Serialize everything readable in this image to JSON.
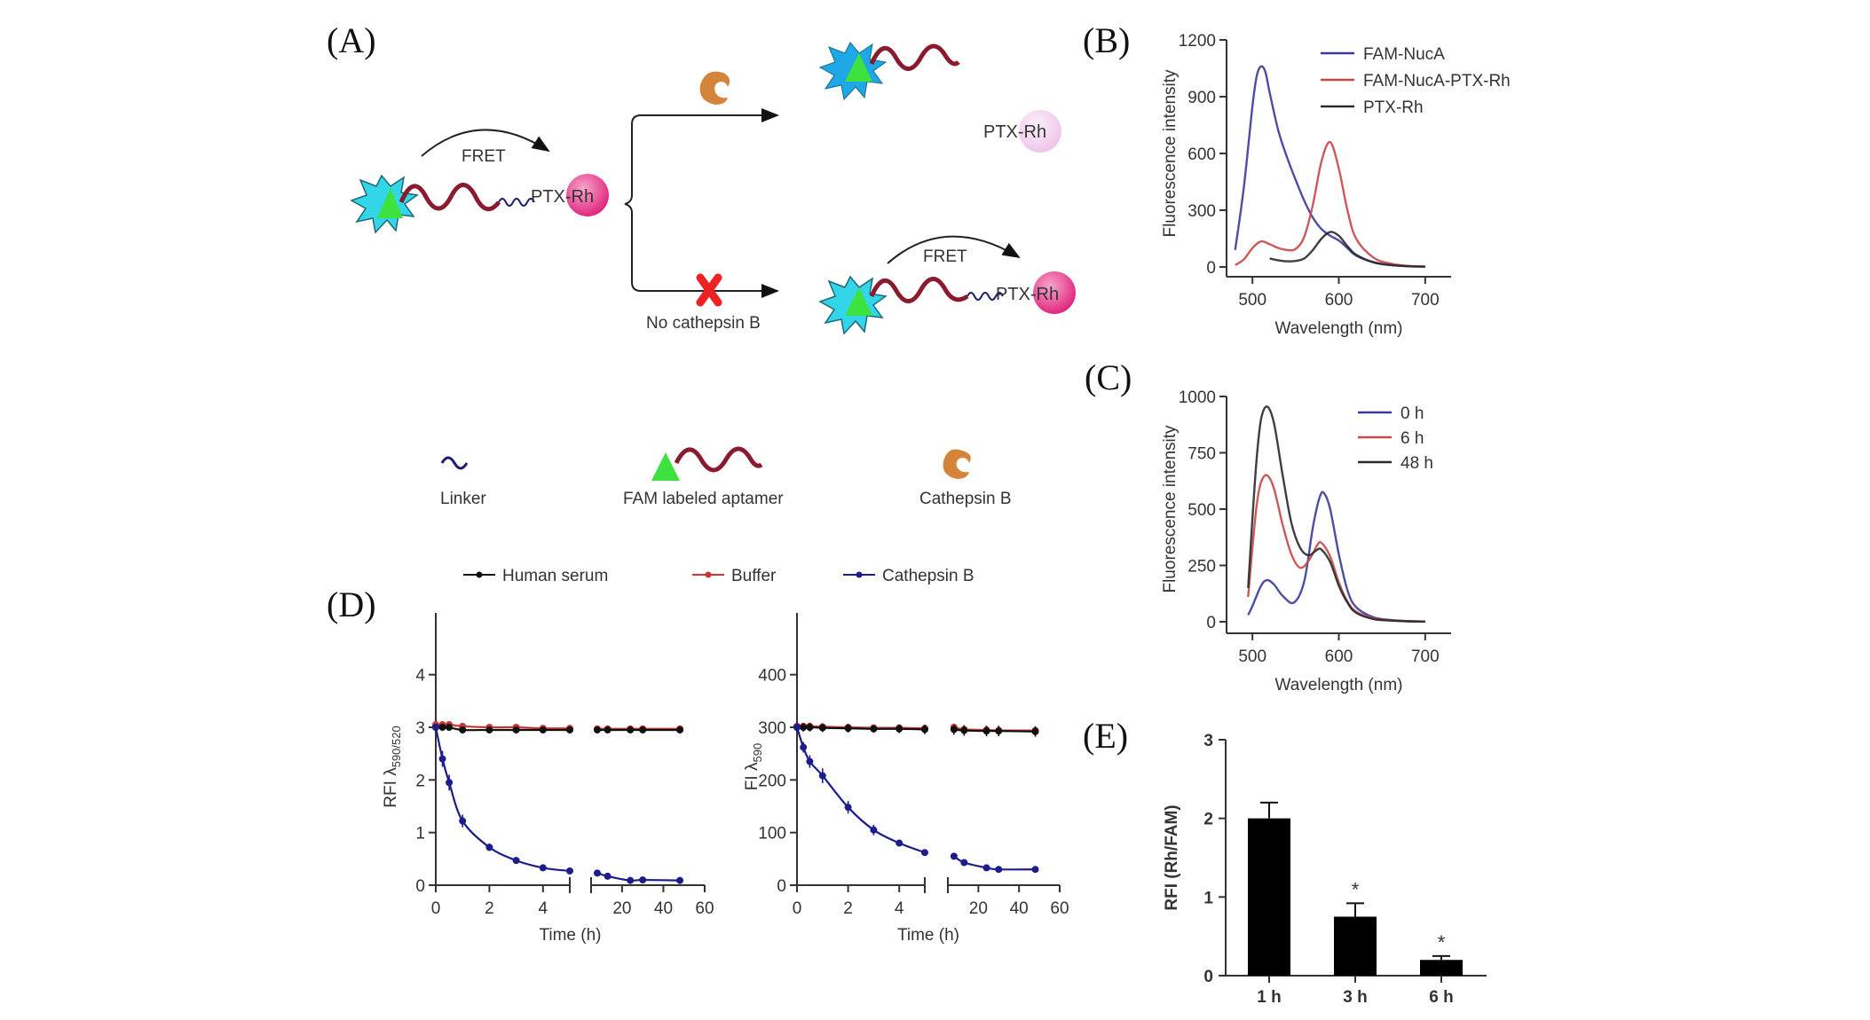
{
  "panels": {
    "A": {
      "letter": "(A)",
      "fret_label": "FRET",
      "ptx_rh_label": "PTX-Rh",
      "released_ptx_rh_label": "PTX-Rh",
      "no_cathepsin_label": "No cathepsin B",
      "legend": {
        "linker": "Linker",
        "aptamer": "FAM labeled aptamer",
        "cathepsin": "Cathepsin B"
      },
      "colors": {
        "star": "#33d6e8",
        "star_released": "#1ea8e6",
        "fam": "#3ee23e",
        "aptamer": "#8a1a2e",
        "linker": "#1c1c6e",
        "rh": "#e8348c",
        "rh_faded": "#f3d3ef",
        "cathepsin": "#d4843a",
        "cross": "#ee2222"
      }
    },
    "B": {
      "letter": "(B)"
    },
    "C": {
      "letter": "(C)"
    },
    "D": {
      "letter": "(D)"
    },
    "E": {
      "letter": "(E)"
    }
  },
  "chart_data": [
    {
      "id": "B",
      "type": "line",
      "xlabel": "Wavelength (nm)",
      "ylabel": "Fluorescence intensity",
      "xlim": [
        470,
        730
      ],
      "ylim": [
        0,
        1200
      ],
      "xticks": [
        500,
        600,
        700
      ],
      "yticks": [
        0,
        300,
        600,
        900,
        1200
      ],
      "legend_position": "top-right",
      "series": [
        {
          "name": "FAM-NucA",
          "color": "#3a3a9a",
          "x": [
            480,
            490,
            500,
            505,
            510,
            515,
            520,
            530,
            540,
            550,
            560,
            570,
            580,
            590,
            600,
            610,
            620,
            640,
            660,
            680,
            700
          ],
          "y": [
            90,
            420,
            850,
            1010,
            1060,
            1030,
            920,
            720,
            580,
            460,
            350,
            260,
            200,
            165,
            140,
            100,
            60,
            25,
            10,
            4,
            2
          ]
        },
        {
          "name": "FAM-NucA-PTX-Rh",
          "color": "#c84848",
          "x": [
            480,
            490,
            500,
            510,
            520,
            530,
            540,
            550,
            560,
            570,
            580,
            590,
            600,
            610,
            620,
            640,
            660,
            680,
            700
          ],
          "y": [
            10,
            40,
            100,
            135,
            120,
            100,
            90,
            95,
            160,
            330,
            560,
            660,
            520,
            300,
            150,
            50,
            18,
            6,
            2
          ]
        },
        {
          "name": "PTX-Rh",
          "color": "#2a2a2a",
          "x": [
            520,
            530,
            540,
            550,
            560,
            570,
            580,
            590,
            600,
            610,
            620,
            640,
            660,
            680,
            700
          ],
          "y": [
            45,
            35,
            30,
            32,
            45,
            90,
            150,
            185,
            165,
            110,
            65,
            25,
            10,
            4,
            2
          ]
        }
      ]
    },
    {
      "id": "C",
      "type": "line",
      "xlabel": "Wavelength (nm)",
      "ylabel": "Fluorescence intensity",
      "xlim": [
        470,
        730
      ],
      "ylim": [
        0,
        1000
      ],
      "xticks": [
        500,
        600,
        700
      ],
      "yticks": [
        0,
        250,
        500,
        750,
        1000
      ],
      "legend_position": "top-right",
      "series": [
        {
          "name": "0 h",
          "color": "#3a3a9a",
          "x": [
            495,
            500,
            510,
            517,
            525,
            535,
            548,
            560,
            570,
            578,
            583,
            590,
            600,
            610,
            620,
            640,
            660,
            680,
            700
          ],
          "y": [
            30,
            70,
            160,
            185,
            165,
            115,
            85,
            180,
            420,
            555,
            570,
            500,
            300,
            140,
            65,
            20,
            8,
            3,
            1
          ]
        },
        {
          "name": "6 h",
          "color": "#c84848",
          "x": [
            495,
            500,
            505,
            510,
            517,
            525,
            535,
            545,
            555,
            565,
            575,
            580,
            590,
            600,
            610,
            620,
            640,
            660,
            680,
            700
          ],
          "y": [
            110,
            330,
            520,
            620,
            650,
            590,
            430,
            300,
            240,
            270,
            340,
            350,
            290,
            175,
            90,
            45,
            15,
            6,
            2,
            1
          ]
        },
        {
          "name": "48 h",
          "color": "#2a2a2a",
          "x": [
            495,
            500,
            505,
            510,
            517,
            525,
            535,
            545,
            555,
            565,
            575,
            580,
            590,
            600,
            610,
            620,
            640,
            660,
            680,
            700
          ],
          "y": [
            150,
            460,
            730,
            900,
            955,
            880,
            650,
            440,
            330,
            295,
            320,
            320,
            265,
            160,
            85,
            40,
            12,
            5,
            2,
            1
          ]
        }
      ]
    },
    {
      "id": "D-left",
      "type": "line",
      "xlabel": "Time (h)",
      "ylabel": "RFI λ590/520",
      "ylabel_main": "RFI λ",
      "ylabel_sub": "590/520",
      "ylim": [
        0,
        4.5
      ],
      "yticks": [
        0,
        1,
        2,
        3,
        4
      ],
      "x_broken_axis": true,
      "x_segment1": {
        "range": [
          0,
          5
        ],
        "ticks": [
          0,
          2,
          4
        ]
      },
      "x_segment2": {
        "range": [
          5,
          60
        ],
        "ticks": [
          20,
          40,
          60
        ]
      },
      "legend_position": "top",
      "series": [
        {
          "name": "Human serum",
          "color": "#111111",
          "x": [
            0,
            0.25,
            0.5,
            1,
            2,
            3,
            4,
            5,
            8,
            13,
            24,
            30,
            48
          ],
          "y": [
            3.0,
            3.0,
            3.0,
            2.95,
            2.95,
            2.95,
            2.95,
            2.95,
            2.95,
            2.95,
            2.95,
            2.95,
            2.95
          ]
        },
        {
          "name": "Buffer",
          "color": "#cc3333",
          "x": [
            0,
            0.25,
            0.5,
            1,
            2,
            3,
            4,
            5,
            8,
            13,
            24,
            30,
            48
          ],
          "y": [
            3.05,
            3.05,
            3.05,
            3.02,
            3.0,
            3.0,
            2.98,
            2.98,
            2.97,
            2.97,
            2.97,
            2.97,
            2.97
          ]
        },
        {
          "name": "Cathepsin B",
          "color": "#1c1c8c",
          "x": [
            0,
            0.25,
            0.5,
            1,
            2,
            3,
            4,
            5,
            8,
            13,
            24,
            30,
            48
          ],
          "y": [
            3.0,
            2.4,
            1.95,
            1.22,
            0.72,
            0.47,
            0.33,
            0.27,
            0.23,
            0.17,
            0.09,
            0.1,
            0.09
          ],
          "err": [
            0.05,
            0.15,
            0.15,
            0.12,
            0.07,
            0.04,
            0.03,
            0.02,
            0.02,
            0.02,
            0.02,
            0.02,
            0.02
          ]
        }
      ]
    },
    {
      "id": "D-right",
      "type": "line",
      "xlabel": "Time (h)",
      "ylabel": "FI λ590",
      "ylabel_main": "FI λ",
      "ylabel_sub": "590",
      "ylim": [
        0,
        450
      ],
      "yticks": [
        0,
        100,
        200,
        300,
        400
      ],
      "x_broken_axis": true,
      "x_segment1": {
        "range": [
          0,
          5
        ],
        "ticks": [
          0,
          2,
          4
        ]
      },
      "x_segment2": {
        "range": [
          5,
          60
        ],
        "ticks": [
          20,
          40,
          60
        ]
      },
      "series": [
        {
          "name": "Human serum",
          "color": "#111111",
          "x": [
            0,
            0.25,
            0.5,
            1,
            2,
            3,
            4,
            5,
            8,
            13,
            24,
            30,
            48
          ],
          "y": [
            300,
            300,
            300,
            299,
            298,
            297,
            297,
            296,
            296,
            294,
            293,
            293,
            292
          ],
          "err": [
            8,
            8,
            8,
            8,
            8,
            7,
            8,
            9,
            10,
            10,
            10,
            10,
            10
          ]
        },
        {
          "name": "Buffer",
          "color": "#cc3333",
          "x": [
            0,
            0.25,
            0.5,
            1,
            2,
            3,
            4,
            5,
            8,
            13,
            24,
            30,
            48
          ],
          "y": [
            302,
            302,
            302,
            301,
            300,
            299,
            299,
            298,
            300,
            296,
            295,
            294,
            294
          ]
        },
        {
          "name": "Cathepsin B",
          "color": "#1c1c8c",
          "x": [
            0,
            0.25,
            0.5,
            1,
            2,
            3,
            4,
            5,
            8,
            13,
            24,
            30,
            48
          ],
          "y": [
            300,
            262,
            235,
            208,
            148,
            105,
            80,
            62,
            55,
            43,
            33,
            30,
            30
          ],
          "err": [
            5,
            10,
            12,
            14,
            12,
            10,
            3,
            3,
            3,
            3,
            3,
            2,
            2
          ]
        }
      ]
    },
    {
      "id": "E",
      "type": "bar",
      "categories": [
        "1 h",
        "3 h",
        "6 h"
      ],
      "values": [
        2.0,
        0.75,
        0.2
      ],
      "errors": [
        0.2,
        0.17,
        0.05
      ],
      "significance": [
        "",
        "*",
        "*"
      ],
      "ylabel": "RFI (Rh/FAM)",
      "xlabel": "",
      "ylim": [
        0,
        3
      ],
      "yticks": [
        0,
        1,
        2,
        3
      ],
      "bar_color": "#000000"
    }
  ]
}
